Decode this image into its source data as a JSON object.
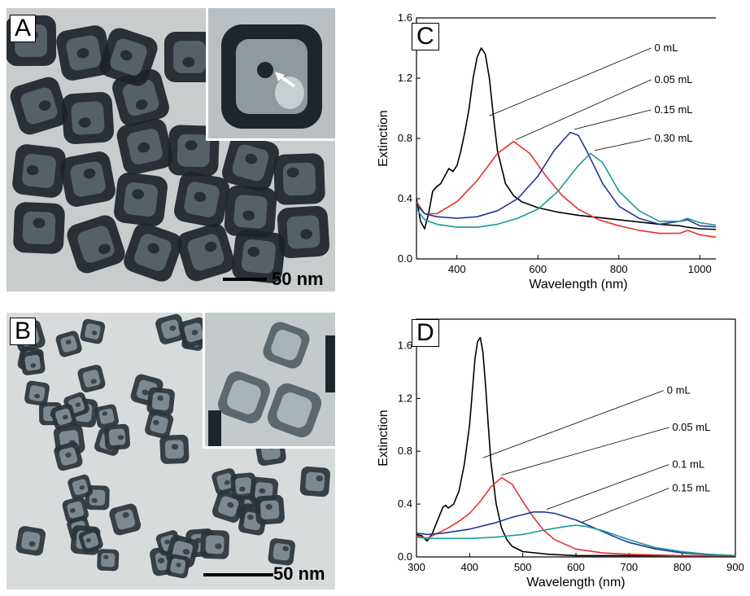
{
  "panels": {
    "A": {
      "letter": "A",
      "scale_label": "50 nm"
    },
    "B": {
      "letter": "B",
      "scale_label": "50 nm"
    },
    "C": {
      "letter": "C"
    },
    "D": {
      "letter": "D"
    }
  },
  "colors": {
    "black": "#000000",
    "red": "#e8322b",
    "blue": "#24369a",
    "teal": "#1a9a99"
  },
  "chart_data": [
    {
      "id": "C",
      "type": "line",
      "xlabel": "Wavelength (nm)",
      "ylabel": "Extinction",
      "xlim": [
        300,
        1100
      ],
      "ylim": [
        0.0,
        1.6
      ],
      "xticks": [
        400,
        600,
        800,
        1000
      ],
      "yticks": [
        0.0,
        0.4,
        0.8,
        1.2,
        1.6
      ],
      "tick_labels_x": [
        "400",
        "600",
        "800",
        "1000"
      ],
      "tick_labels_y": [
        "0.0",
        "0.4",
        "0.8",
        "1.2",
        "1.6"
      ],
      "series": [
        {
          "name": "0 mL",
          "color": "#000000",
          "x": [
            300,
            310,
            320,
            330,
            340,
            350,
            360,
            370,
            380,
            390,
            400,
            410,
            420,
            430,
            440,
            450,
            460,
            470,
            480,
            490,
            500,
            520,
            540,
            560,
            600,
            650,
            700,
            800,
            900,
            950,
            970,
            1000,
            1100
          ],
          "y": [
            0.4,
            0.25,
            0.2,
            0.3,
            0.45,
            0.48,
            0.5,
            0.55,
            0.6,
            0.58,
            0.62,
            0.72,
            0.85,
            1.0,
            1.2,
            1.34,
            1.4,
            1.36,
            1.2,
            0.95,
            0.72,
            0.5,
            0.42,
            0.38,
            0.34,
            0.31,
            0.29,
            0.26,
            0.23,
            0.22,
            0.21,
            0.2,
            0.19
          ]
        },
        {
          "name": "0.05 mL",
          "color": "#e8322b",
          "x": [
            300,
            320,
            350,
            400,
            450,
            500,
            540,
            580,
            620,
            660,
            700,
            750,
            800,
            850,
            900,
            950,
            970,
            1000,
            1050,
            1100
          ],
          "y": [
            0.38,
            0.3,
            0.3,
            0.38,
            0.52,
            0.7,
            0.78,
            0.7,
            0.55,
            0.42,
            0.33,
            0.26,
            0.22,
            0.19,
            0.17,
            0.17,
            0.19,
            0.16,
            0.14,
            0.13
          ]
        },
        {
          "name": "0.15 mL",
          "color": "#24369a",
          "x": [
            300,
            320,
            350,
            400,
            450,
            500,
            550,
            600,
            640,
            680,
            700,
            720,
            760,
            800,
            850,
            900,
            950,
            970,
            1000,
            1050,
            1100
          ],
          "y": [
            0.36,
            0.3,
            0.28,
            0.27,
            0.28,
            0.32,
            0.4,
            0.55,
            0.72,
            0.84,
            0.82,
            0.72,
            0.5,
            0.35,
            0.27,
            0.23,
            0.25,
            0.26,
            0.22,
            0.21,
            0.2
          ]
        },
        {
          "name": "0.30 mL",
          "color": "#1a9a99",
          "x": [
            300,
            320,
            350,
            400,
            450,
            500,
            550,
            600,
            650,
            700,
            730,
            760,
            800,
            850,
            900,
            950,
            970,
            1000,
            1050,
            1100
          ],
          "y": [
            0.33,
            0.26,
            0.23,
            0.21,
            0.21,
            0.23,
            0.27,
            0.33,
            0.45,
            0.62,
            0.7,
            0.64,
            0.45,
            0.32,
            0.25,
            0.25,
            0.27,
            0.24,
            0.22,
            0.21
          ]
        }
      ],
      "annotations": [
        {
          "text": "0 mL"
        },
        {
          "text": "0.05 mL"
        },
        {
          "text": "0.15 mL"
        },
        {
          "text": "0.30 mL"
        }
      ]
    },
    {
      "id": "D",
      "type": "line",
      "xlabel": "Wavelength (nm)",
      "ylabel": "Extinction",
      "xlim": [
        300,
        900
      ],
      "ylim": [
        0.0,
        1.8
      ],
      "xticks": [
        300,
        400,
        500,
        600,
        700,
        800,
        900
      ],
      "yticks": [
        0.0,
        0.4,
        0.8,
        1.2,
        1.6
      ],
      "tick_labels_x": [
        "300",
        "400",
        "500",
        "600",
        "700",
        "800",
        "900"
      ],
      "tick_labels_y": [
        "0.0",
        "0.4",
        "0.8",
        "1.2",
        "1.6"
      ],
      "series": [
        {
          "name": "0 mL",
          "color": "#000000",
          "x": [
            300,
            310,
            320,
            330,
            340,
            350,
            355,
            360,
            370,
            380,
            390,
            400,
            405,
            410,
            415,
            420,
            425,
            430,
            435,
            440,
            450,
            460,
            470,
            480,
            500,
            550,
            600,
            700,
            900
          ],
          "y": [
            0.17,
            0.16,
            0.12,
            0.18,
            0.28,
            0.38,
            0.39,
            0.37,
            0.4,
            0.5,
            0.7,
            1.0,
            1.25,
            1.5,
            1.63,
            1.66,
            1.55,
            1.3,
            1.0,
            0.72,
            0.4,
            0.22,
            0.13,
            0.08,
            0.04,
            0.02,
            0.01,
            0.01,
            0.01
          ]
        },
        {
          "name": "0.05 mL",
          "color": "#e8322b",
          "x": [
            300,
            320,
            340,
            360,
            380,
            400,
            420,
            440,
            460,
            480,
            500,
            520,
            540,
            560,
            600,
            650,
            700,
            800,
            900
          ],
          "y": [
            0.16,
            0.14,
            0.18,
            0.22,
            0.27,
            0.33,
            0.42,
            0.53,
            0.6,
            0.55,
            0.42,
            0.3,
            0.2,
            0.13,
            0.06,
            0.03,
            0.02,
            0.01,
            0.01
          ]
        },
        {
          "name": "0.1 mL",
          "color": "#24369a",
          "x": [
            300,
            320,
            350,
            400,
            450,
            480,
            500,
            520,
            540,
            560,
            600,
            640,
            680,
            700,
            750,
            800,
            850,
            900
          ],
          "y": [
            0.18,
            0.17,
            0.18,
            0.21,
            0.26,
            0.3,
            0.32,
            0.34,
            0.34,
            0.33,
            0.28,
            0.21,
            0.14,
            0.11,
            0.06,
            0.03,
            0.02,
            0.01
          ]
        },
        {
          "name": "0.15 mL",
          "color": "#1a9a99",
          "x": [
            300,
            320,
            350,
            400,
            450,
            500,
            550,
            580,
            600,
            620,
            650,
            700,
            750,
            800,
            850,
            900
          ],
          "y": [
            0.15,
            0.14,
            0.14,
            0.14,
            0.15,
            0.17,
            0.21,
            0.23,
            0.24,
            0.23,
            0.2,
            0.13,
            0.07,
            0.04,
            0.02,
            0.01
          ]
        }
      ],
      "annotations": [
        {
          "text": "0 mL"
        },
        {
          "text": "0.05 mL"
        },
        {
          "text": "0.1 mL"
        },
        {
          "text": "0.15 mL"
        }
      ]
    }
  ]
}
